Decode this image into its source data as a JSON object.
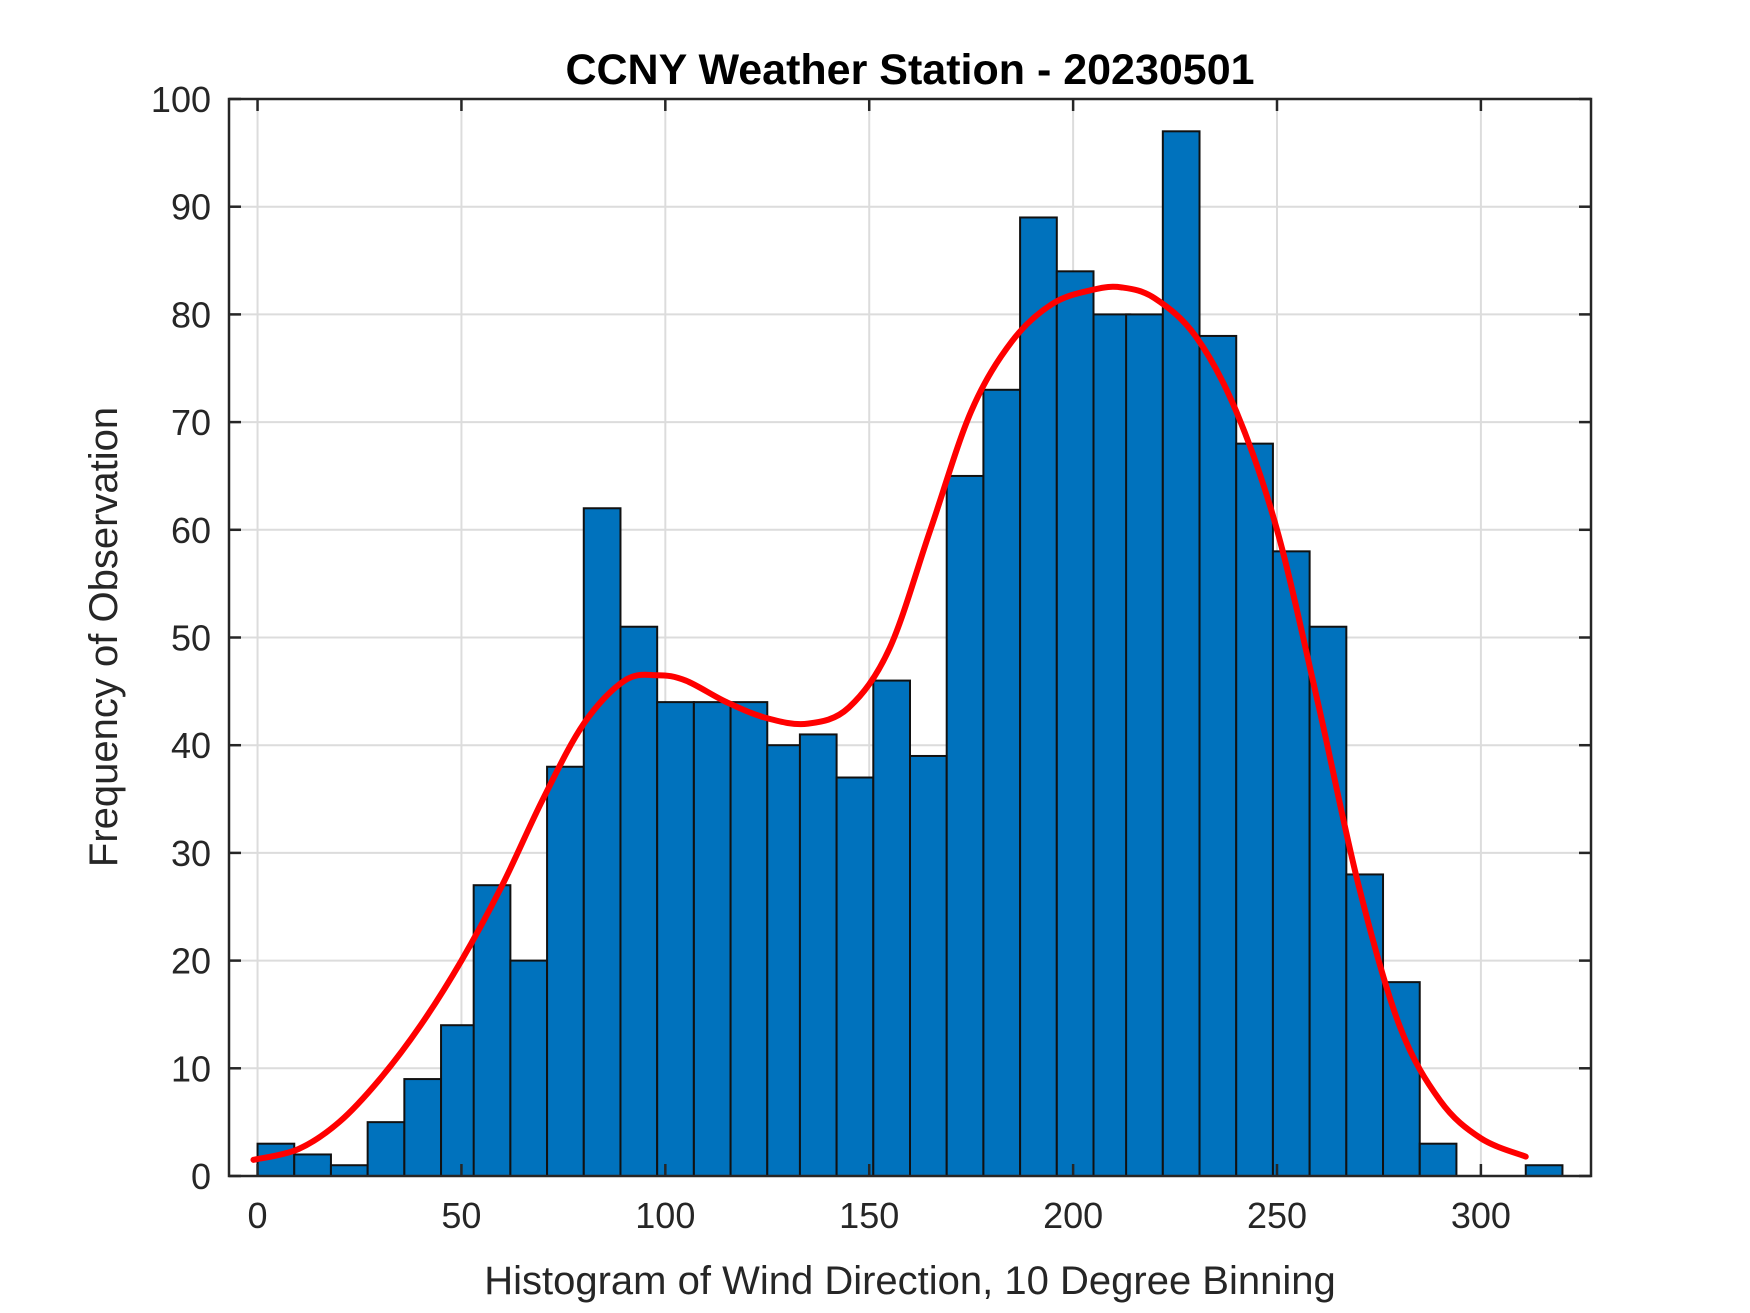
{
  "chart_data": {
    "type": "bar",
    "title": "CCNY Weather Station - 20230501",
    "xlabel": "Histogram of Wind Direction, 10 Degree Binning",
    "ylabel": "Frequency of Observation",
    "xlim": [
      -7,
      327
    ],
    "ylim": [
      0,
      100
    ],
    "bin_width": 9,
    "x_ticks": [
      0,
      50,
      100,
      150,
      200,
      250,
      300
    ],
    "y_ticks": [
      0,
      10,
      20,
      30,
      40,
      50,
      60,
      70,
      80,
      90,
      100
    ],
    "grid": true,
    "bar_color": "#0072BD",
    "fit_color": "#FF0000",
    "bars": [
      {
        "left": 0,
        "value": 3
      },
      {
        "left": 9,
        "value": 2
      },
      {
        "left": 18,
        "value": 1
      },
      {
        "left": 27,
        "value": 5
      },
      {
        "left": 36,
        "value": 9
      },
      {
        "left": 45,
        "value": 14
      },
      {
        "left": 53,
        "value": 27
      },
      {
        "left": 62,
        "value": 20
      },
      {
        "left": 71,
        "value": 38
      },
      {
        "left": 80,
        "value": 62
      },
      {
        "left": 89,
        "value": 51
      },
      {
        "left": 98,
        "value": 44
      },
      {
        "left": 107,
        "value": 44
      },
      {
        "left": 116,
        "value": 44
      },
      {
        "left": 125,
        "value": 40
      },
      {
        "left": 133,
        "value": 41
      },
      {
        "left": 142,
        "value": 37
      },
      {
        "left": 151,
        "value": 46
      },
      {
        "left": 160,
        "value": 39
      },
      {
        "left": 169,
        "value": 65
      },
      {
        "left": 178,
        "value": 73
      },
      {
        "left": 187,
        "value": 89
      },
      {
        "left": 196,
        "value": 84
      },
      {
        "left": 205,
        "value": 80
      },
      {
        "left": 213,
        "value": 80
      },
      {
        "left": 222,
        "value": 97
      },
      {
        "left": 231,
        "value": 78
      },
      {
        "left": 240,
        "value": 68
      },
      {
        "left": 249,
        "value": 58
      },
      {
        "left": 258,
        "value": 51
      },
      {
        "left": 267,
        "value": 28
      },
      {
        "left": 276,
        "value": 18
      },
      {
        "left": 285,
        "value": 3
      },
      {
        "left": 311,
        "value": 1
      }
    ],
    "fit_curve": {
      "name": "fitted distribution",
      "x": [
        -1,
        10,
        20,
        30,
        40,
        50,
        60,
        70,
        80,
        90,
        98,
        105,
        115,
        125,
        135,
        145,
        155,
        165,
        175,
        185,
        195,
        205,
        212,
        220,
        230,
        240,
        250,
        260,
        270,
        280,
        290,
        300,
        311
      ],
      "y": [
        1.5,
        2.5,
        5,
        9,
        14,
        20,
        27,
        35,
        42,
        46,
        46.5,
        46,
        44,
        42.5,
        42,
        43.5,
        49,
        60,
        71,
        77.5,
        81,
        82.3,
        82.5,
        81.5,
        78,
        71,
        60,
        44,
        27,
        14,
        7,
        3.5,
        1.8
      ]
    }
  }
}
